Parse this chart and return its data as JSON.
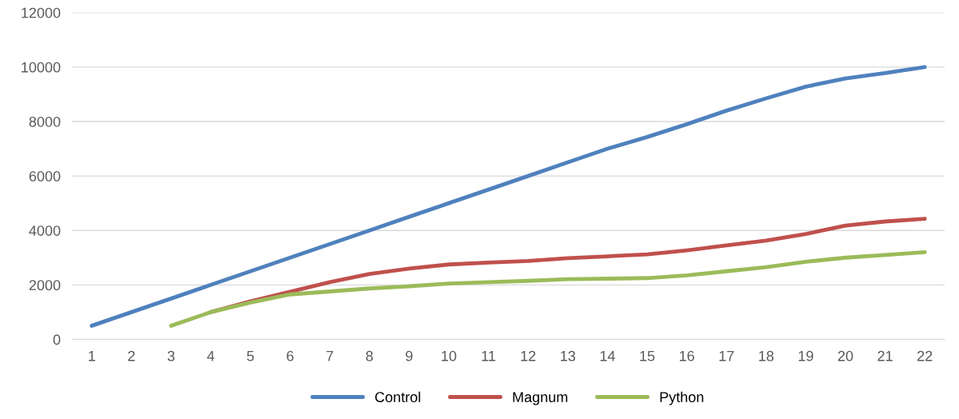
{
  "chart_data": {
    "type": "line",
    "categories": [
      "1",
      "2",
      "3",
      "4",
      "5",
      "6",
      "7",
      "8",
      "9",
      "10",
      "11",
      "12",
      "13",
      "14",
      "15",
      "16",
      "17",
      "18",
      "19",
      "20",
      "21",
      "22"
    ],
    "series": [
      {
        "name": "Control",
        "color": "#4f81bd",
        "values": [
          500,
          1000,
          1500,
          2000,
          2500,
          3000,
          3500,
          4000,
          4500,
          5000,
          5500,
          6000,
          6500,
          7000,
          7430,
          7900,
          8400,
          8850,
          9280,
          9580,
          9780,
          10000
        ]
      },
      {
        "name": "Magnum",
        "color": "#c0504d",
        "values": [
          null,
          null,
          null,
          1000,
          1400,
          1750,
          2100,
          2400,
          2600,
          2750,
          2820,
          2880,
          2980,
          3050,
          3120,
          3270,
          3450,
          3630,
          3870,
          4180,
          4330,
          4430
        ]
      },
      {
        "name": "Python",
        "color": "#9bbb59",
        "values": [
          null,
          null,
          500,
          1000,
          1350,
          1650,
          1760,
          1870,
          1950,
          2050,
          2100,
          2150,
          2210,
          2230,
          2250,
          2350,
          2500,
          2650,
          2850,
          3000,
          3100,
          3200
        ]
      }
    ],
    "ylim": [
      0,
      12000
    ],
    "yticks": [
      0,
      2000,
      4000,
      6000,
      8000,
      10000,
      12000
    ],
    "grid": "y",
    "legend": "bottom",
    "marker": "none",
    "line_style": "solid"
  }
}
